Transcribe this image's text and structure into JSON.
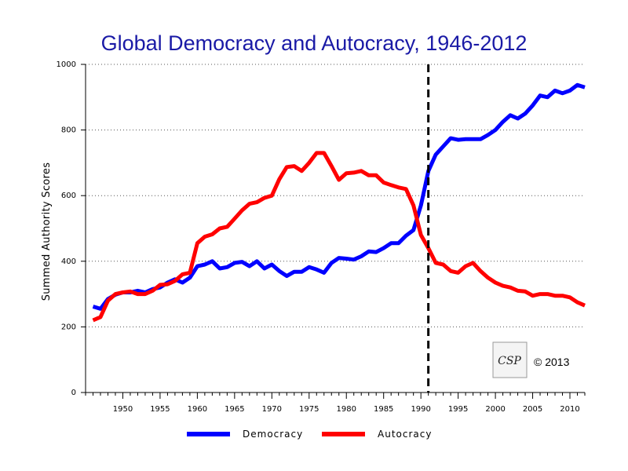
{
  "chart_data": {
    "type": "line",
    "title": "Global Democracy and Autocracy, 1946-2012",
    "xlabel": "",
    "ylabel": "Summed Authority Scores",
    "xlim": [
      1945,
      2012
    ],
    "ylim": [
      0,
      1000
    ],
    "x_ticks": [
      1950,
      1955,
      1960,
      1965,
      1970,
      1975,
      1980,
      1985,
      1990,
      1995,
      2000,
      2005,
      2010
    ],
    "y_ticks": [
      0,
      200,
      400,
      600,
      800,
      1000
    ],
    "grid": "horizontal dotted",
    "reference_line": {
      "x": 1991,
      "style": "dashed"
    },
    "legend_position": "bottom",
    "annotation": "© 2013",
    "logo_text": "CSP",
    "series": [
      {
        "name": "Democracy",
        "color": "#0000ff",
        "x": [
          1946,
          1947,
          1948,
          1949,
          1950,
          1951,
          1952,
          1953,
          1954,
          1955,
          1956,
          1957,
          1958,
          1959,
          1960,
          1961,
          1962,
          1963,
          1964,
          1965,
          1966,
          1967,
          1968,
          1969,
          1970,
          1971,
          1972,
          1973,
          1974,
          1975,
          1976,
          1977,
          1978,
          1979,
          1980,
          1981,
          1982,
          1983,
          1984,
          1985,
          1986,
          1987,
          1988,
          1989,
          1990,
          1991,
          1992,
          1993,
          1994,
          1995,
          1996,
          1997,
          1998,
          1999,
          2000,
          2001,
          2002,
          2003,
          2004,
          2005,
          2006,
          2007,
          2008,
          2009,
          2010,
          2011,
          2012
        ],
        "values": [
          262,
          255,
          285,
          298,
          305,
          305,
          310,
          305,
          315,
          320,
          335,
          345,
          335,
          350,
          385,
          390,
          400,
          378,
          382,
          395,
          398,
          385,
          400,
          378,
          390,
          370,
          355,
          368,
          368,
          382,
          375,
          365,
          395,
          410,
          408,
          405,
          415,
          430,
          428,
          440,
          455,
          455,
          478,
          495,
          570,
          675,
          725,
          750,
          775,
          770,
          772,
          772,
          772,
          785,
          800,
          825,
          845,
          835,
          850,
          875,
          905,
          900,
          920,
          912,
          920,
          937,
          930
        ]
      },
      {
        "name": "Autocracy",
        "color": "#ff0000",
        "x": [
          1946,
          1947,
          1948,
          1949,
          1950,
          1951,
          1952,
          1953,
          1954,
          1955,
          1956,
          1957,
          1958,
          1959,
          1960,
          1961,
          1962,
          1963,
          1964,
          1965,
          1966,
          1967,
          1968,
          1969,
          1970,
          1971,
          1972,
          1973,
          1974,
          1975,
          1976,
          1977,
          1978,
          1979,
          1980,
          1981,
          1982,
          1983,
          1984,
          1985,
          1986,
          1987,
          1988,
          1989,
          1990,
          1991,
          1992,
          1993,
          1994,
          1995,
          1996,
          1997,
          1998,
          1999,
          2000,
          2001,
          2002,
          2003,
          2004,
          2005,
          2006,
          2007,
          2008,
          2009,
          2010,
          2011,
          2012
        ],
        "values": [
          220,
          230,
          280,
          300,
          305,
          308,
          300,
          300,
          310,
          328,
          330,
          340,
          360,
          365,
          455,
          475,
          482,
          500,
          505,
          530,
          555,
          575,
          580,
          593,
          600,
          650,
          687,
          690,
          675,
          700,
          730,
          730,
          690,
          648,
          668,
          670,
          675,
          662,
          662,
          640,
          632,
          625,
          620,
          570,
          480,
          440,
          395,
          390,
          370,
          365,
          385,
          395,
          370,
          350,
          335,
          325,
          320,
          310,
          308,
          295,
          300,
          300,
          295,
          295,
          290,
          275,
          265
        ]
      }
    ]
  }
}
